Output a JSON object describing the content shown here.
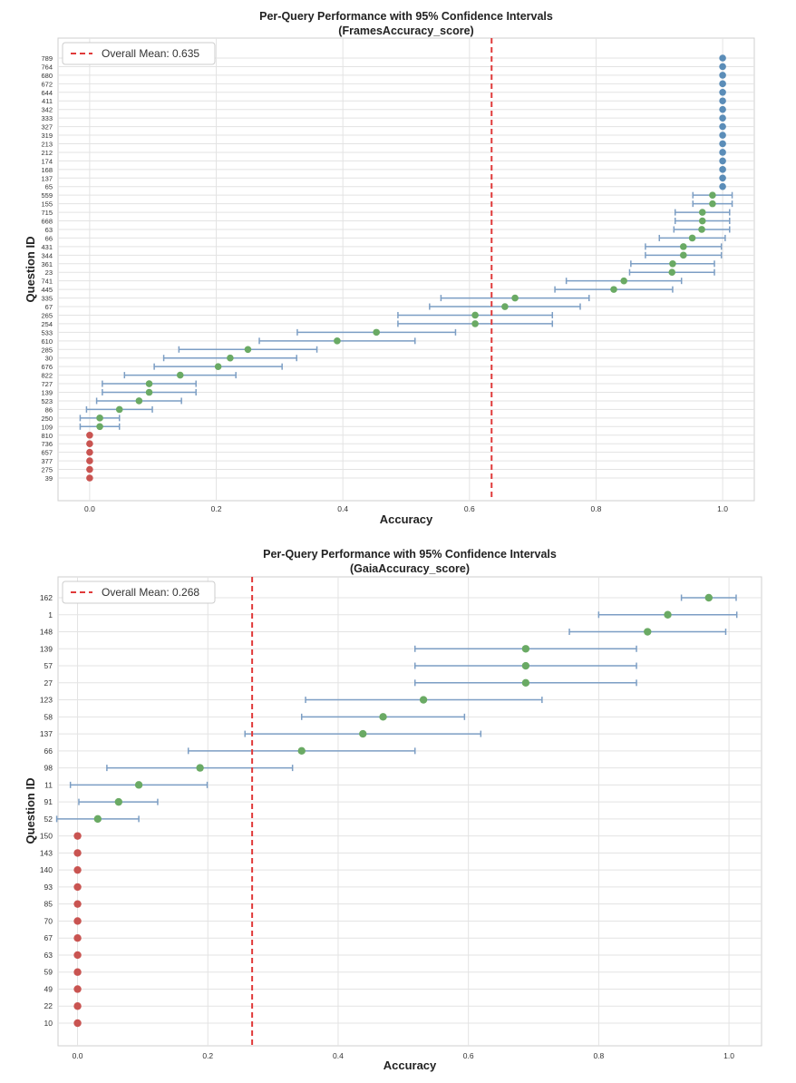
{
  "chart_data": [
    {
      "type": "scatter",
      "title": "Per-Query Performance with 95% Confidence Intervals",
      "subtitle": "(FramesAccuracy_score)",
      "xlabel": "Accuracy",
      "ylabel": "Question ID",
      "xlim": [
        -0.05,
        1.05
      ],
      "xticks": [
        "0.0",
        "0.2",
        "0.4",
        "0.6",
        "0.8",
        "1.0"
      ],
      "xtick_values": [
        0.0,
        0.2,
        0.4,
        0.6,
        0.8,
        1.0
      ],
      "grid": true,
      "legend": {
        "position": "top-left",
        "label": "Overall Mean: 0.635"
      },
      "mean": 0.635,
      "colors": {
        "perfect": "#5b8db8",
        "partial": "#6aaa64",
        "zero": "#c95451",
        "ci": "#7c9ec4",
        "mean": "#e03a3a"
      },
      "points": [
        {
          "id": "789",
          "mean": 1.0,
          "lo": 1.0,
          "hi": 1.0
        },
        {
          "id": "764",
          "mean": 1.0,
          "lo": 1.0,
          "hi": 1.0
        },
        {
          "id": "680",
          "mean": 1.0,
          "lo": 1.0,
          "hi": 1.0
        },
        {
          "id": "672",
          "mean": 1.0,
          "lo": 1.0,
          "hi": 1.0
        },
        {
          "id": "644",
          "mean": 1.0,
          "lo": 1.0,
          "hi": 1.0
        },
        {
          "id": "411",
          "mean": 1.0,
          "lo": 1.0,
          "hi": 1.0
        },
        {
          "id": "342",
          "mean": 1.0,
          "lo": 1.0,
          "hi": 1.0
        },
        {
          "id": "333",
          "mean": 1.0,
          "lo": 1.0,
          "hi": 1.0
        },
        {
          "id": "327",
          "mean": 1.0,
          "lo": 1.0,
          "hi": 1.0
        },
        {
          "id": "319",
          "mean": 1.0,
          "lo": 1.0,
          "hi": 1.0
        },
        {
          "id": "213",
          "mean": 1.0,
          "lo": 1.0,
          "hi": 1.0
        },
        {
          "id": "212",
          "mean": 1.0,
          "lo": 1.0,
          "hi": 1.0
        },
        {
          "id": "174",
          "mean": 1.0,
          "lo": 1.0,
          "hi": 1.0
        },
        {
          "id": "168",
          "mean": 1.0,
          "lo": 1.0,
          "hi": 1.0
        },
        {
          "id": "137",
          "mean": 1.0,
          "lo": 1.0,
          "hi": 1.0
        },
        {
          "id": "65",
          "mean": 1.0,
          "lo": 1.0,
          "hi": 1.0
        },
        {
          "id": "559",
          "mean": 0.984,
          "lo": 0.953,
          "hi": 1.015
        },
        {
          "id": "155",
          "mean": 0.984,
          "lo": 0.953,
          "hi": 1.015
        },
        {
          "id": "715",
          "mean": 0.968,
          "lo": 0.925,
          "hi": 1.011
        },
        {
          "id": "668",
          "mean": 0.968,
          "lo": 0.925,
          "hi": 1.011
        },
        {
          "id": "63",
          "mean": 0.967,
          "lo": 0.923,
          "hi": 1.011
        },
        {
          "id": "66",
          "mean": 0.952,
          "lo": 0.9,
          "hi": 1.004
        },
        {
          "id": "431",
          "mean": 0.938,
          "lo": 0.878,
          "hi": 0.998
        },
        {
          "id": "344",
          "mean": 0.938,
          "lo": 0.878,
          "hi": 0.998
        },
        {
          "id": "361",
          "mean": 0.921,
          "lo": 0.855,
          "hi": 0.987
        },
        {
          "id": "23",
          "mean": 0.92,
          "lo": 0.853,
          "hi": 0.987
        },
        {
          "id": "741",
          "mean": 0.844,
          "lo": 0.753,
          "hi": 0.935
        },
        {
          "id": "445",
          "mean": 0.828,
          "lo": 0.735,
          "hi": 0.921
        },
        {
          "id": "335",
          "mean": 0.672,
          "lo": 0.555,
          "hi": 0.789
        },
        {
          "id": "67",
          "mean": 0.656,
          "lo": 0.537,
          "hi": 0.775
        },
        {
          "id": "265",
          "mean": 0.609,
          "lo": 0.487,
          "hi": 0.731
        },
        {
          "id": "254",
          "mean": 0.609,
          "lo": 0.487,
          "hi": 0.731
        },
        {
          "id": "533",
          "mean": 0.453,
          "lo": 0.328,
          "hi": 0.578
        },
        {
          "id": "610",
          "mean": 0.391,
          "lo": 0.268,
          "hi": 0.514
        },
        {
          "id": "285",
          "mean": 0.25,
          "lo": 0.141,
          "hi": 0.359
        },
        {
          "id": "30",
          "mean": 0.222,
          "lo": 0.117,
          "hi": 0.327
        },
        {
          "id": "676",
          "mean": 0.203,
          "lo": 0.102,
          "hi": 0.304
        },
        {
          "id": "822",
          "mean": 0.143,
          "lo": 0.055,
          "hi": 0.231
        },
        {
          "id": "727",
          "mean": 0.094,
          "lo": 0.02,
          "hi": 0.168
        },
        {
          "id": "139",
          "mean": 0.094,
          "lo": 0.02,
          "hi": 0.168
        },
        {
          "id": "523",
          "mean": 0.078,
          "lo": 0.011,
          "hi": 0.145
        },
        {
          "id": "86",
          "mean": 0.047,
          "lo": -0.005,
          "hi": 0.099
        },
        {
          "id": "250",
          "mean": 0.016,
          "lo": -0.015,
          "hi": 0.047
        },
        {
          "id": "109",
          "mean": 0.016,
          "lo": -0.015,
          "hi": 0.047
        },
        {
          "id": "810",
          "mean": 0.0,
          "lo": 0.0,
          "hi": 0.0
        },
        {
          "id": "736",
          "mean": 0.0,
          "lo": 0.0,
          "hi": 0.0
        },
        {
          "id": "657",
          "mean": 0.0,
          "lo": 0.0,
          "hi": 0.0
        },
        {
          "id": "377",
          "mean": 0.0,
          "lo": 0.0,
          "hi": 0.0
        },
        {
          "id": "275",
          "mean": 0.0,
          "lo": 0.0,
          "hi": 0.0
        },
        {
          "id": "39",
          "mean": 0.0,
          "lo": 0.0,
          "hi": 0.0
        }
      ]
    },
    {
      "type": "scatter",
      "title": "Per-Query Performance with 95% Confidence Intervals",
      "subtitle": "(GaiaAccuracy_score)",
      "xlabel": "Accuracy",
      "ylabel": "Question ID",
      "xlim": [
        -0.03,
        1.05
      ],
      "xticks": [
        "0.0",
        "0.2",
        "0.4",
        "0.6",
        "0.8",
        "1.0"
      ],
      "xtick_values": [
        0.0,
        0.2,
        0.4,
        0.6,
        0.8,
        1.0
      ],
      "grid": true,
      "legend": {
        "position": "top-left",
        "label": "Overall Mean: 0.268"
      },
      "mean": 0.268,
      "colors": {
        "perfect": "#5b8db8",
        "partial": "#6aaa64",
        "zero": "#c95451",
        "ci": "#7c9ec4",
        "mean": "#e03a3a"
      },
      "points": [
        {
          "id": "162",
          "mean": 0.969,
          "lo": 0.927,
          "hi": 1.011
        },
        {
          "id": "1",
          "mean": 0.906,
          "lo": 0.8,
          "hi": 1.012
        },
        {
          "id": "148",
          "mean": 0.875,
          "lo": 0.755,
          "hi": 0.995
        },
        {
          "id": "139",
          "mean": 0.688,
          "lo": 0.518,
          "hi": 0.858
        },
        {
          "id": "57",
          "mean": 0.688,
          "lo": 0.518,
          "hi": 0.858
        },
        {
          "id": "27",
          "mean": 0.688,
          "lo": 0.518,
          "hi": 0.858
        },
        {
          "id": "123",
          "mean": 0.531,
          "lo": 0.35,
          "hi": 0.713
        },
        {
          "id": "58",
          "mean": 0.469,
          "lo": 0.344,
          "hi": 0.594
        },
        {
          "id": "137",
          "mean": 0.438,
          "lo": 0.257,
          "hi": 0.619
        },
        {
          "id": "66",
          "mean": 0.344,
          "lo": 0.17,
          "hi": 0.518
        },
        {
          "id": "98",
          "mean": 0.188,
          "lo": 0.045,
          "hi": 0.33
        },
        {
          "id": "11",
          "mean": 0.094,
          "lo": -0.011,
          "hi": 0.199
        },
        {
          "id": "91",
          "mean": 0.063,
          "lo": 0.002,
          "hi": 0.123
        },
        {
          "id": "52",
          "mean": 0.031,
          "lo": -0.032,
          "hi": 0.094
        },
        {
          "id": "150",
          "mean": 0.0,
          "lo": 0.0,
          "hi": 0.0
        },
        {
          "id": "143",
          "mean": 0.0,
          "lo": 0.0,
          "hi": 0.0
        },
        {
          "id": "140",
          "mean": 0.0,
          "lo": 0.0,
          "hi": 0.0
        },
        {
          "id": "93",
          "mean": 0.0,
          "lo": 0.0,
          "hi": 0.0
        },
        {
          "id": "85",
          "mean": 0.0,
          "lo": 0.0,
          "hi": 0.0
        },
        {
          "id": "70",
          "mean": 0.0,
          "lo": 0.0,
          "hi": 0.0
        },
        {
          "id": "67",
          "mean": 0.0,
          "lo": 0.0,
          "hi": 0.0
        },
        {
          "id": "63",
          "mean": 0.0,
          "lo": 0.0,
          "hi": 0.0
        },
        {
          "id": "59",
          "mean": 0.0,
          "lo": 0.0,
          "hi": 0.0
        },
        {
          "id": "49",
          "mean": 0.0,
          "lo": 0.0,
          "hi": 0.0
        },
        {
          "id": "22",
          "mean": 0.0,
          "lo": 0.0,
          "hi": 0.0
        },
        {
          "id": "10",
          "mean": 0.0,
          "lo": 0.0,
          "hi": 0.0
        }
      ]
    }
  ]
}
